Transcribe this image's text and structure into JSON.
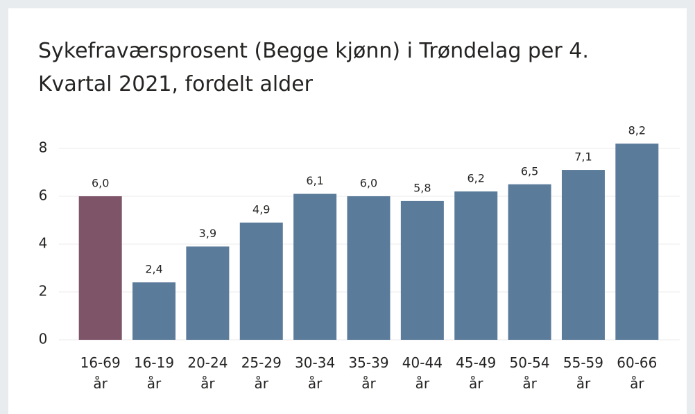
{
  "chart_data": {
    "type": "bar",
    "title": "Sykefraværsprosent (Begge kjønn) i Trøndelag per 4. Kvartal 2021, fordelt alder",
    "categories": [
      "16-69 år",
      "16-19 år",
      "20-24 år",
      "25-29 år",
      "30-34 år",
      "35-39 år",
      "40-44 år",
      "45-49 år",
      "50-54 år",
      "55-59 år",
      "60-66 år"
    ],
    "values": [
      6.0,
      2.4,
      3.9,
      4.9,
      6.1,
      6.0,
      5.8,
      6.2,
      6.5,
      7.1,
      8.2
    ],
    "value_labels": [
      "6,0",
      "2,4",
      "3,9",
      "4,9",
      "6,1",
      "6,0",
      "5,8",
      "6,2",
      "6,5",
      "7,1",
      "8,2"
    ],
    "colors": [
      "#7e5468",
      "#5b7b9a",
      "#5b7b9a",
      "#5b7b9a",
      "#5b7b9a",
      "#5b7b9a",
      "#5b7b9a",
      "#5b7b9a",
      "#5b7b9a",
      "#5b7b9a",
      "#5b7b9a"
    ],
    "ylim": [
      0,
      8.5
    ],
    "yticks": [
      0,
      2,
      4,
      6,
      8
    ],
    "grid": true
  }
}
